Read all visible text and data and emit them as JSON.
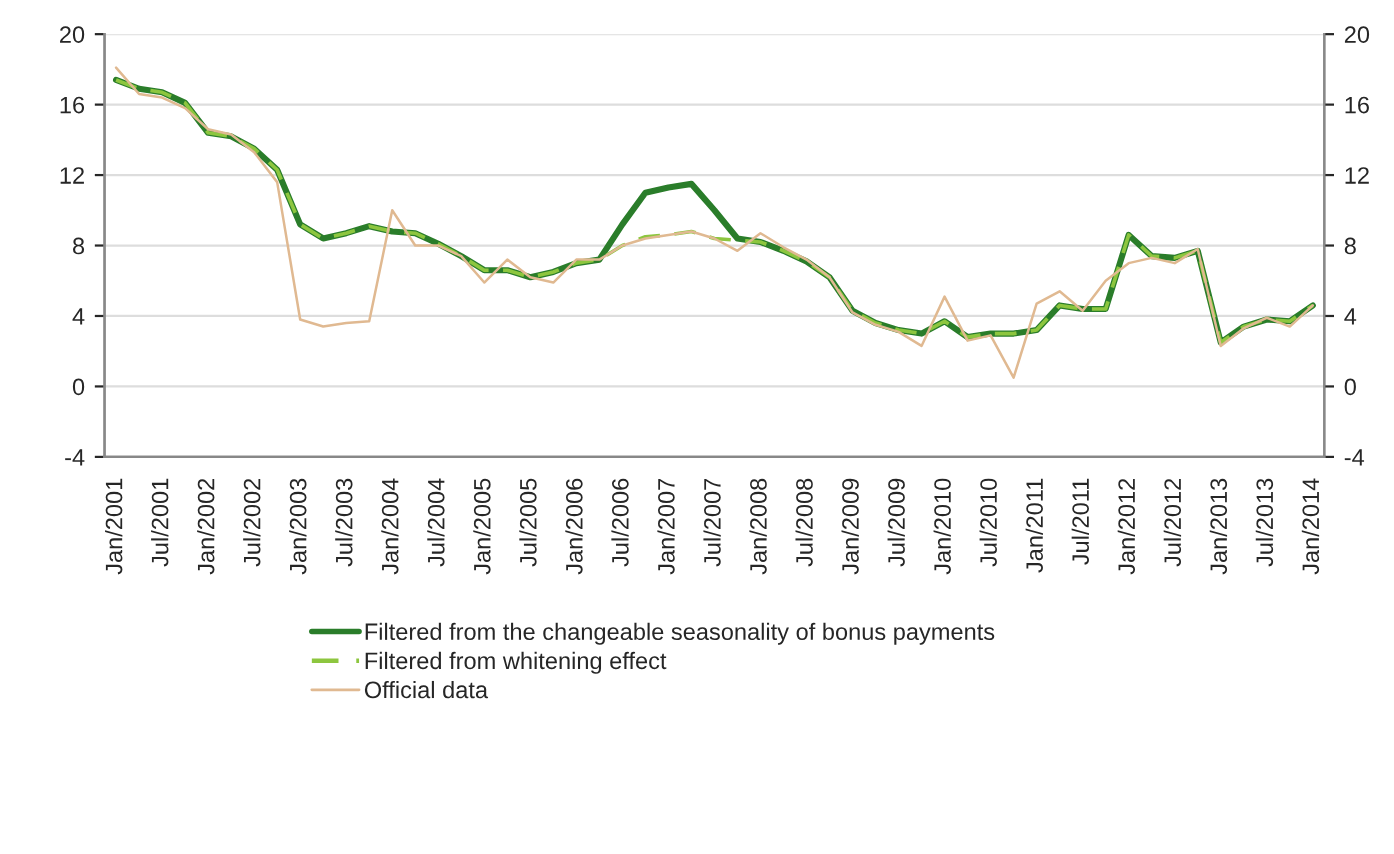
{
  "chart_data": {
    "type": "line",
    "categories": [
      "Jan/2001",
      null,
      "Jul/2001",
      null,
      "Jan/2002",
      null,
      "Jul/2002",
      null,
      "Jan/2003",
      null,
      "Jul/2003",
      null,
      "Jan/2004",
      null,
      "Jul/2004",
      null,
      "Jan/2005",
      null,
      "Jul/2005",
      null,
      "Jan/2006",
      null,
      "Jul/2006",
      null,
      "Jan/2007",
      null,
      "Jul/2007",
      null,
      "Jan/2008",
      null,
      "Jul/2008",
      null,
      "Jan/2009",
      null,
      "Jul/2009",
      null,
      "Jan/2010",
      null,
      "Jul/2010",
      null,
      "Jan/2011",
      null,
      "Jul/2011",
      null,
      "Jan/2012",
      null,
      "Jul/2012",
      null,
      "Jan/2013",
      null,
      "Jul/2013",
      null,
      "Jan/2014"
    ],
    "series": [
      {
        "name": "Filtered from the changeable seasonality of bonus payments",
        "color": "#2a7d2a",
        "line_style": "solid",
        "values": [
          17.4,
          16.9,
          16.7,
          16.1,
          14.4,
          14.2,
          13.5,
          12.3,
          9.2,
          8.4,
          8.7,
          9.1,
          8.8,
          8.7,
          8.1,
          7.4,
          6.6,
          6.6,
          6.2,
          6.5,
          7.0,
          7.2,
          9.2,
          11.0,
          11.3,
          11.5,
          10.0,
          8.4,
          8.2,
          7.7,
          7.1,
          6.2,
          4.3,
          3.6,
          3.2,
          3.0,
          3.7,
          2.8,
          3.0,
          3.0,
          3.2,
          4.6,
          4.4,
          4.4,
          8.6,
          7.4,
          7.3,
          7.7,
          2.5,
          3.4,
          3.8,
          3.7,
          4.6
        ]
      },
      {
        "name": "Filtered from whitening effect",
        "color": "#8dc63f",
        "line_style": "dashed",
        "values": [
          17.4,
          16.9,
          16.7,
          16.1,
          14.4,
          14.2,
          13.5,
          12.3,
          9.2,
          8.4,
          8.7,
          9.1,
          8.8,
          8.7,
          8.1,
          7.4,
          6.6,
          6.6,
          6.2,
          6.5,
          7.0,
          7.2,
          8.0,
          8.5,
          8.6,
          8.8,
          8.4,
          8.3,
          8.2,
          7.7,
          7.1,
          6.2,
          4.3,
          3.6,
          3.2,
          3.0,
          3.7,
          2.8,
          3.0,
          3.0,
          3.2,
          4.6,
          4.4,
          4.4,
          8.6,
          7.4,
          7.3,
          7.7,
          2.5,
          3.4,
          3.8,
          3.7,
          4.6
        ]
      },
      {
        "name": "Official data",
        "color": "#e0b991",
        "line_style": "solid",
        "values": [
          18.1,
          16.6,
          16.4,
          15.8,
          14.6,
          14.3,
          13.3,
          11.6,
          3.8,
          3.4,
          3.6,
          3.7,
          10.0,
          8.0,
          8.0,
          7.4,
          5.9,
          7.2,
          6.2,
          5.9,
          7.2,
          7.2,
          8.0,
          8.4,
          8.6,
          8.8,
          8.4,
          7.7,
          8.7,
          7.9,
          7.2,
          6.2,
          4.2,
          3.5,
          3.1,
          2.3,
          5.1,
          2.6,
          2.9,
          0.5,
          4.7,
          5.4,
          4.3,
          6.0,
          7.0,
          7.3,
          7.0,
          7.8,
          2.3,
          3.3,
          3.9,
          3.4,
          4.6
        ]
      }
    ],
    "ylim": [
      -4,
      20
    ],
    "yticks": [
      -4,
      0,
      4,
      8,
      12,
      16,
      20
    ],
    "y2lim": [
      -4,
      20
    ],
    "y2ticks": [
      -4,
      0,
      4,
      8,
      12,
      16,
      20
    ],
    "grid": "y",
    "legend": "bottom",
    "marker": "none"
  }
}
